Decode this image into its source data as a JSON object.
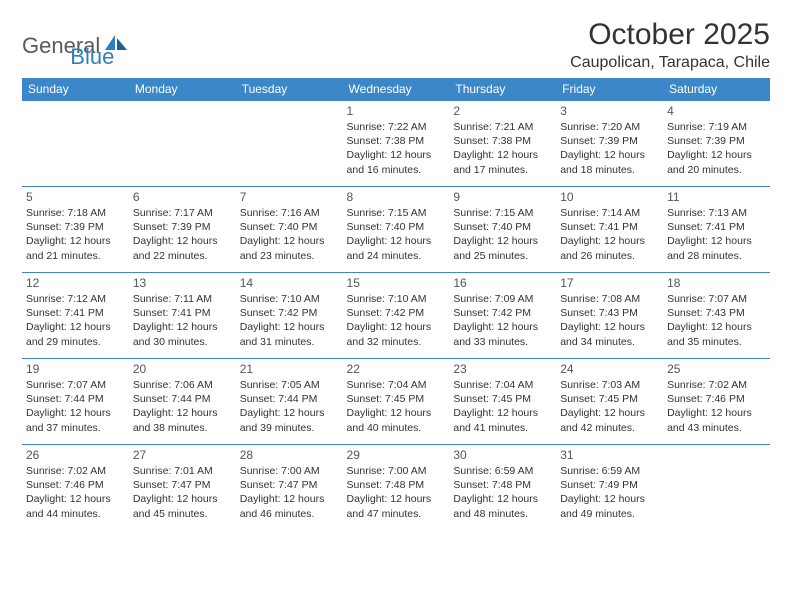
{
  "logo": {
    "general": "General",
    "blue": "Blue"
  },
  "title": "October 2025",
  "location": "Caupolican, Tarapaca, Chile",
  "colors": {
    "header_bg": "#3b87c8",
    "header_text": "#ffffff",
    "border": "#3b87c8",
    "logo_gray": "#5a5a5a",
    "logo_blue": "#2d7fc1",
    "text": "#333333"
  },
  "weekdays": [
    "Sunday",
    "Monday",
    "Tuesday",
    "Wednesday",
    "Thursday",
    "Friday",
    "Saturday"
  ],
  "weeks": [
    [
      null,
      null,
      null,
      {
        "n": "1",
        "sr": "7:22 AM",
        "ss": "7:38 PM",
        "dl": "12 hours and 16 minutes."
      },
      {
        "n": "2",
        "sr": "7:21 AM",
        "ss": "7:38 PM",
        "dl": "12 hours and 17 minutes."
      },
      {
        "n": "3",
        "sr": "7:20 AM",
        "ss": "7:39 PM",
        "dl": "12 hours and 18 minutes."
      },
      {
        "n": "4",
        "sr": "7:19 AM",
        "ss": "7:39 PM",
        "dl": "12 hours and 20 minutes."
      }
    ],
    [
      {
        "n": "5",
        "sr": "7:18 AM",
        "ss": "7:39 PM",
        "dl": "12 hours and 21 minutes."
      },
      {
        "n": "6",
        "sr": "7:17 AM",
        "ss": "7:39 PM",
        "dl": "12 hours and 22 minutes."
      },
      {
        "n": "7",
        "sr": "7:16 AM",
        "ss": "7:40 PM",
        "dl": "12 hours and 23 minutes."
      },
      {
        "n": "8",
        "sr": "7:15 AM",
        "ss": "7:40 PM",
        "dl": "12 hours and 24 minutes."
      },
      {
        "n": "9",
        "sr": "7:15 AM",
        "ss": "7:40 PM",
        "dl": "12 hours and 25 minutes."
      },
      {
        "n": "10",
        "sr": "7:14 AM",
        "ss": "7:41 PM",
        "dl": "12 hours and 26 minutes."
      },
      {
        "n": "11",
        "sr": "7:13 AM",
        "ss": "7:41 PM",
        "dl": "12 hours and 28 minutes."
      }
    ],
    [
      {
        "n": "12",
        "sr": "7:12 AM",
        "ss": "7:41 PM",
        "dl": "12 hours and 29 minutes."
      },
      {
        "n": "13",
        "sr": "7:11 AM",
        "ss": "7:41 PM",
        "dl": "12 hours and 30 minutes."
      },
      {
        "n": "14",
        "sr": "7:10 AM",
        "ss": "7:42 PM",
        "dl": "12 hours and 31 minutes."
      },
      {
        "n": "15",
        "sr": "7:10 AM",
        "ss": "7:42 PM",
        "dl": "12 hours and 32 minutes."
      },
      {
        "n": "16",
        "sr": "7:09 AM",
        "ss": "7:42 PM",
        "dl": "12 hours and 33 minutes."
      },
      {
        "n": "17",
        "sr": "7:08 AM",
        "ss": "7:43 PM",
        "dl": "12 hours and 34 minutes."
      },
      {
        "n": "18",
        "sr": "7:07 AM",
        "ss": "7:43 PM",
        "dl": "12 hours and 35 minutes."
      }
    ],
    [
      {
        "n": "19",
        "sr": "7:07 AM",
        "ss": "7:44 PM",
        "dl": "12 hours and 37 minutes."
      },
      {
        "n": "20",
        "sr": "7:06 AM",
        "ss": "7:44 PM",
        "dl": "12 hours and 38 minutes."
      },
      {
        "n": "21",
        "sr": "7:05 AM",
        "ss": "7:44 PM",
        "dl": "12 hours and 39 minutes."
      },
      {
        "n": "22",
        "sr": "7:04 AM",
        "ss": "7:45 PM",
        "dl": "12 hours and 40 minutes."
      },
      {
        "n": "23",
        "sr": "7:04 AM",
        "ss": "7:45 PM",
        "dl": "12 hours and 41 minutes."
      },
      {
        "n": "24",
        "sr": "7:03 AM",
        "ss": "7:45 PM",
        "dl": "12 hours and 42 minutes."
      },
      {
        "n": "25",
        "sr": "7:02 AM",
        "ss": "7:46 PM",
        "dl": "12 hours and 43 minutes."
      }
    ],
    [
      {
        "n": "26",
        "sr": "7:02 AM",
        "ss": "7:46 PM",
        "dl": "12 hours and 44 minutes."
      },
      {
        "n": "27",
        "sr": "7:01 AM",
        "ss": "7:47 PM",
        "dl": "12 hours and 45 minutes."
      },
      {
        "n": "28",
        "sr": "7:00 AM",
        "ss": "7:47 PM",
        "dl": "12 hours and 46 minutes."
      },
      {
        "n": "29",
        "sr": "7:00 AM",
        "ss": "7:48 PM",
        "dl": "12 hours and 47 minutes."
      },
      {
        "n": "30",
        "sr": "6:59 AM",
        "ss": "7:48 PM",
        "dl": "12 hours and 48 minutes."
      },
      {
        "n": "31",
        "sr": "6:59 AM",
        "ss": "7:49 PM",
        "dl": "12 hours and 49 minutes."
      },
      null
    ]
  ],
  "labels": {
    "sunrise": "Sunrise: ",
    "sunset": "Sunset: ",
    "daylight": "Daylight: "
  }
}
